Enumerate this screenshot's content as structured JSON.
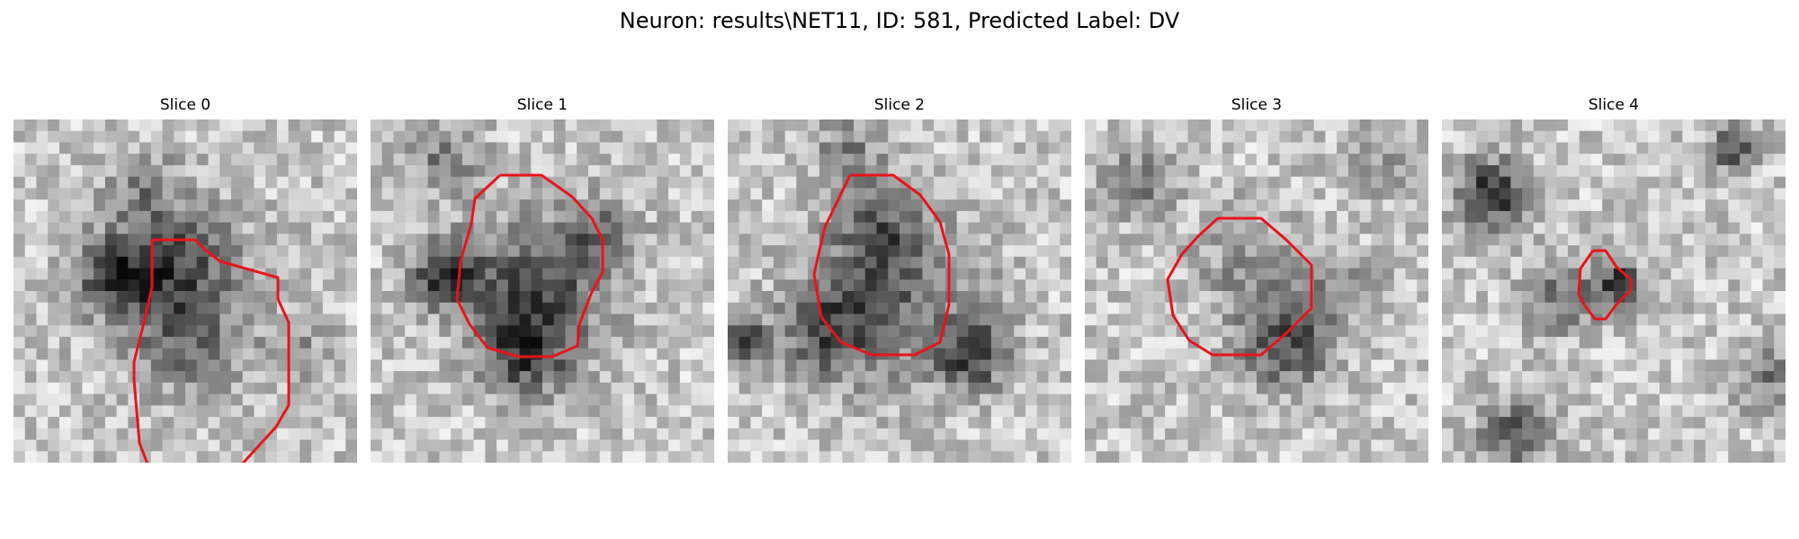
{
  "figure": {
    "title": "Neuron: results\\NET11, ID: 581, Predicted Label: DV"
  },
  "panels": [
    {
      "title": "Slice 0"
    },
    {
      "title": "Slice 1"
    },
    {
      "title": "Slice 2"
    },
    {
      "title": "Slice 3"
    },
    {
      "title": "Slice 4"
    }
  ],
  "colors": {
    "contour": "#e8141b",
    "background": "#ffffff"
  }
}
